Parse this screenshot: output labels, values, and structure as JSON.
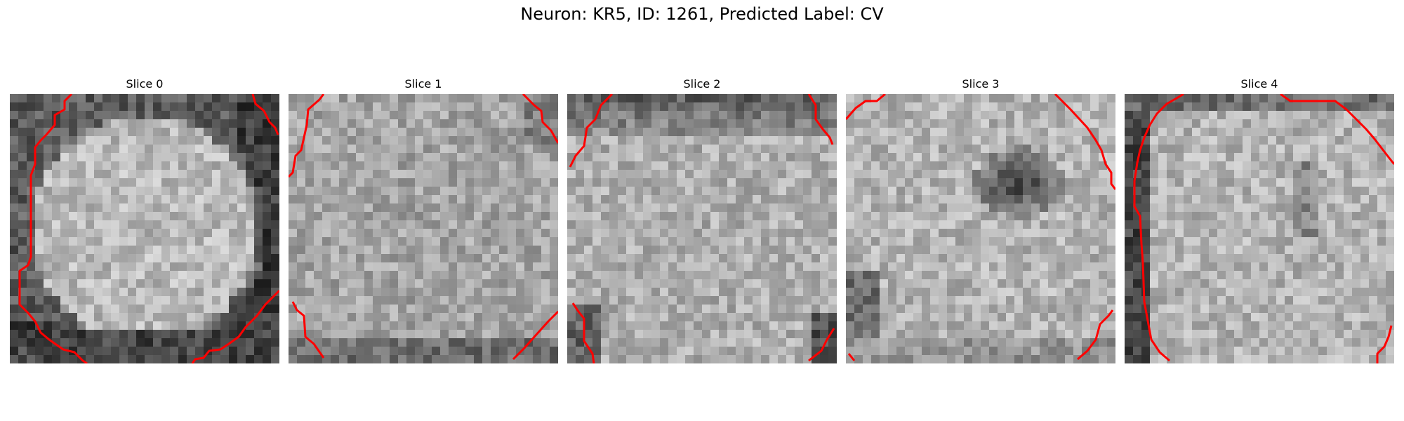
{
  "figure": {
    "title": "Neuron: KR5, ID: 1261, Predicted Label: CV"
  },
  "colors": {
    "outline": "#ff0000",
    "background": "#ffffff"
  },
  "slices": [
    {
      "label": "Slice 0"
    },
    {
      "label": "Slice 1"
    },
    {
      "label": "Slice 2"
    },
    {
      "label": "Slice 3"
    },
    {
      "label": "Slice 4"
    }
  ]
}
